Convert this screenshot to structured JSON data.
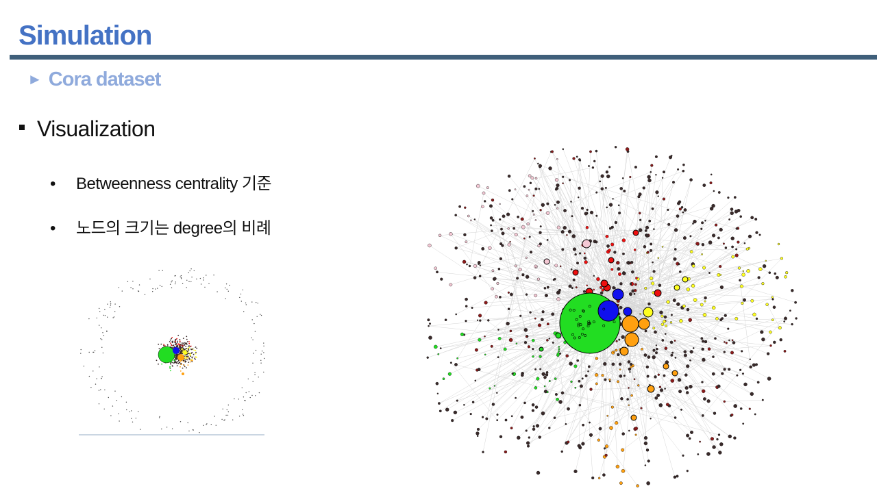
{
  "slide": {
    "title": "Simulation",
    "subtitle": "Cora dataset",
    "subtitle_marker": "►",
    "bullet_main": "Visualization",
    "bullets": [
      "Betweenness centrality 기준",
      "노드의 크기는 degree의 비례"
    ]
  },
  "colors": {
    "title": "#4472c4",
    "subtitle": "#8faadc",
    "rule": "#3f5f7a",
    "clusters": [
      "#22dd22",
      "#1010ee",
      "#ffa010",
      "#ffff20",
      "#ee1010",
      "#f4c8d4",
      "#8b1a1a"
    ]
  },
  "icons": [
    "square-bullet-icon",
    "dot-bullet-icon",
    "triangle-marker-icon"
  ]
}
